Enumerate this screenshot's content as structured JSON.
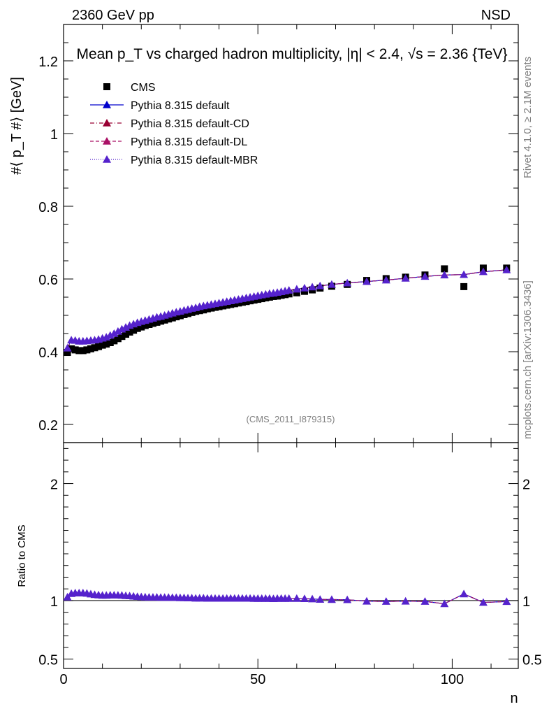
{
  "header": {
    "left": "2360 GeV pp",
    "right": "NSD",
    "title": "Mean p_T vs charged hadron multiplicity, |η| < 2.4, √s = 2.36 {TeV}"
  },
  "side_labels": {
    "rivet": "Rivet 4.1.0, ≥ 2.1M events",
    "mcplots": "mcplots.cern.ch [arXiv:1306.3436]"
  },
  "watermark": "(CMS_2011_I879315)",
  "chart_data": [
    {
      "type": "scatter",
      "panel": "main",
      "ylabel": "#⟨ p_T #⟩ [GeV]",
      "xlabel": "n",
      "xlim": [
        0,
        117
      ],
      "ylim": [
        0.15,
        1.3
      ],
      "yticks": [
        0.2,
        0.4,
        0.6,
        0.8,
        1.0,
        1.2
      ],
      "ytick_labels": [
        "0.2",
        "0.4",
        "0.6",
        "0.8",
        "1",
        "1.2"
      ],
      "legend": [
        {
          "name": "CMS",
          "marker": "square",
          "color": "#000000",
          "line": "none"
        },
        {
          "name": "Pythia 8.315 default",
          "marker": "triangle",
          "color": "#0000cc",
          "line": "solid"
        },
        {
          "name": "Pythia 8.315 default-CD",
          "marker": "triangle",
          "color": "#990033",
          "line": "dashdot"
        },
        {
          "name": "Pythia 8.315 default-DL",
          "marker": "triangle",
          "color": "#aa1166",
          "line": "dashed"
        },
        {
          "name": "Pythia 8.315 default-MBR",
          "marker": "triangle",
          "color": "#5522cc",
          "line": "dotted"
        }
      ],
      "series": [
        {
          "name": "CMS",
          "x": [
            1,
            2,
            3,
            4,
            5,
            6,
            7,
            8,
            9,
            10,
            11,
            12,
            13,
            14,
            15,
            16,
            17,
            18,
            19,
            20,
            21,
            22,
            23,
            24,
            25,
            26,
            27,
            28,
            29,
            30,
            31,
            32,
            33,
            34,
            35,
            36,
            37,
            38,
            39,
            40,
            41,
            42,
            43,
            44,
            45,
            46,
            47,
            48,
            49,
            50,
            51,
            52,
            53,
            54,
            55,
            56,
            57,
            58,
            60,
            62,
            64,
            66,
            69,
            73,
            78,
            83,
            88,
            93,
            98,
            103,
            108,
            114
          ],
          "y": [
            0.398,
            0.408,
            0.405,
            0.403,
            0.403,
            0.405,
            0.408,
            0.411,
            0.414,
            0.418,
            0.421,
            0.425,
            0.43,
            0.436,
            0.442,
            0.448,
            0.454,
            0.459,
            0.464,
            0.468,
            0.472,
            0.475,
            0.478,
            0.481,
            0.484,
            0.487,
            0.49,
            0.493,
            0.496,
            0.499,
            0.502,
            0.505,
            0.508,
            0.511,
            0.513,
            0.515,
            0.518,
            0.52,
            0.522,
            0.524,
            0.526,
            0.528,
            0.53,
            0.532,
            0.534,
            0.536,
            0.538,
            0.54,
            0.542,
            0.544,
            0.546,
            0.548,
            0.55,
            0.552,
            0.553,
            0.555,
            0.557,
            0.559,
            0.562,
            0.566,
            0.57,
            0.575,
            0.58,
            0.585,
            0.596,
            0.601,
            0.605,
            0.611,
            0.628,
            0.579,
            0.63,
            0.63
          ]
        },
        {
          "name": "Pythia 8.315 default",
          "x": [
            1,
            2,
            3,
            4,
            5,
            6,
            7,
            8,
            9,
            10,
            11,
            12,
            13,
            14,
            15,
            16,
            17,
            18,
            19,
            20,
            21,
            22,
            23,
            24,
            25,
            26,
            27,
            28,
            29,
            30,
            31,
            32,
            33,
            34,
            35,
            36,
            37,
            38,
            39,
            40,
            41,
            42,
            43,
            44,
            45,
            46,
            47,
            48,
            49,
            50,
            51,
            52,
            53,
            54,
            55,
            56,
            57,
            58,
            60,
            62,
            64,
            66,
            69,
            73,
            78,
            83,
            88,
            93,
            98,
            103,
            108,
            114
          ],
          "y": [
            0.41,
            0.432,
            0.431,
            0.429,
            0.429,
            0.43,
            0.431,
            0.432,
            0.434,
            0.437,
            0.44,
            0.445,
            0.45,
            0.456,
            0.462,
            0.467,
            0.472,
            0.476,
            0.48,
            0.483,
            0.486,
            0.489,
            0.492,
            0.495,
            0.497,
            0.5,
            0.503,
            0.506,
            0.509,
            0.511,
            0.514,
            0.516,
            0.519,
            0.521,
            0.524,
            0.526,
            0.528,
            0.53,
            0.532,
            0.534,
            0.536,
            0.538,
            0.54,
            0.542,
            0.544,
            0.546,
            0.548,
            0.55,
            0.552,
            0.554,
            0.556,
            0.558,
            0.56,
            0.561,
            0.563,
            0.565,
            0.567,
            0.569,
            0.572,
            0.575,
            0.578,
            0.581,
            0.585,
            0.589,
            0.593,
            0.597,
            0.602,
            0.607,
            0.611,
            0.612,
            0.62,
            0.625
          ]
        }
      ]
    },
    {
      "type": "line",
      "panel": "ratio",
      "ylabel": "Ratio to CMS",
      "xlabel": "n",
      "xlim": [
        0,
        117
      ],
      "ylim": [
        0.42,
        2.35
      ],
      "yticks": [
        0.5,
        1,
        2
      ],
      "ytick_labels": [
        "0.5",
        "1",
        "2"
      ],
      "xticks": [
        0,
        50,
        100
      ],
      "xtick_labels": [
        "0",
        "50",
        "100"
      ],
      "series": [
        {
          "name": "Pythia 8.315 default / CMS",
          "x": [
            1,
            2,
            3,
            4,
            5,
            6,
            7,
            8,
            9,
            10,
            11,
            12,
            13,
            14,
            15,
            16,
            17,
            18,
            19,
            20,
            21,
            22,
            23,
            24,
            25,
            26,
            27,
            28,
            29,
            30,
            31,
            32,
            33,
            34,
            35,
            36,
            37,
            38,
            39,
            40,
            41,
            42,
            43,
            44,
            45,
            46,
            47,
            48,
            49,
            50,
            51,
            52,
            53,
            54,
            55,
            56,
            57,
            58,
            60,
            62,
            64,
            66,
            69,
            73,
            78,
            83,
            88,
            93,
            98,
            103,
            108,
            114
          ],
          "y": [
            1.03,
            1.06,
            1.065,
            1.065,
            1.065,
            1.062,
            1.056,
            1.051,
            1.048,
            1.045,
            1.045,
            1.047,
            1.047,
            1.046,
            1.045,
            1.042,
            1.04,
            1.037,
            1.034,
            1.032,
            1.03,
            1.029,
            1.029,
            1.029,
            1.027,
            1.027,
            1.027,
            1.026,
            1.026,
            1.024,
            1.024,
            1.022,
            1.022,
            1.02,
            1.021,
            1.021,
            1.019,
            1.019,
            1.019,
            1.019,
            1.019,
            1.019,
            1.019,
            1.019,
            1.019,
            1.019,
            1.019,
            1.019,
            1.018,
            1.018,
            1.018,
            1.018,
            1.018,
            1.016,
            1.018,
            1.018,
            1.018,
            1.018,
            1.018,
            1.016,
            1.014,
            1.01,
            1.009,
            1.007,
            0.995,
            0.993,
            0.995,
            0.993,
            0.973,
            1.057,
            0.984,
            0.992
          ]
        }
      ]
    }
  ]
}
